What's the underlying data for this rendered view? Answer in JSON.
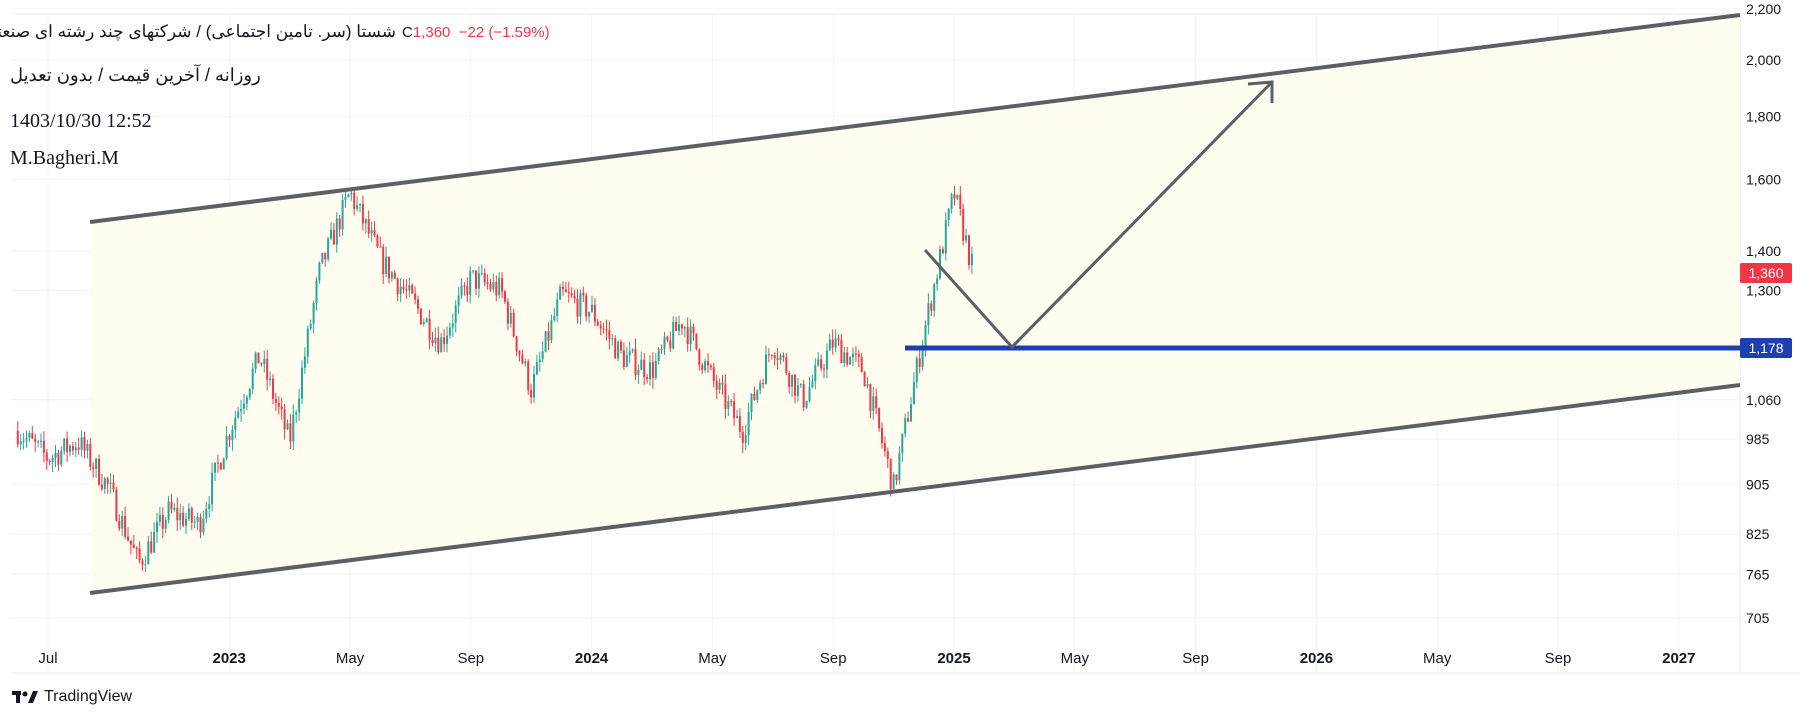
{
  "legend": {
    "symbol_line": "شستا (سر. تامین اجتماعی) / شرکتهای چند رشته ای صنعتی",
    "ohlc_c_label": "C",
    "ohlc_c_value": "1,360",
    "ohlc_change": "−22 (−1.59%)",
    "settings_line": "روزانه / آخرین قیمت / بدون تعدیل",
    "datetime": "1403/10/30 12:52",
    "author": "M.Bagheri.M"
  },
  "branding": {
    "logo_icon": "tradingview-logo-icon",
    "name": "TradingView"
  },
  "colors": {
    "up": "#26a69a",
    "down": "#f23645",
    "channel_fill": "#fffdf0",
    "channel_line": "#5d5f66",
    "support_line": "#1e3fb0",
    "last_price_badge": "#f23645",
    "support_badge": "#1e3fb0"
  },
  "chart_data": {
    "type": "candlestick",
    "scale": "log",
    "price_axis_labels": [
      "2,200",
      "2,000",
      "1,800",
      "1,600",
      "1,400",
      "1,300",
      "1,060",
      "985",
      "905",
      "825",
      "765",
      "705"
    ],
    "time_axis_labels": [
      "Jul",
      "2023",
      "May",
      "Sep",
      "2024",
      "May",
      "Sep",
      "2025",
      "May",
      "Sep",
      "2026",
      "May",
      "Sep",
      "2027"
    ],
    "last_price": "1,360",
    "support_level": "1,178",
    "approx_close_path": [
      {
        "t": "2022-06",
        "p": 1000
      },
      {
        "t": "2022-07",
        "p": 950
      },
      {
        "t": "2022-08",
        "p": 980
      },
      {
        "t": "2022-09",
        "p": 900
      },
      {
        "t": "2022-10",
        "p": 780
      },
      {
        "t": "2022-11",
        "p": 860
      },
      {
        "t": "2022-12",
        "p": 840
      },
      {
        "t": "2023-01",
        "p": 1000
      },
      {
        "t": "2023-02",
        "p": 1150
      },
      {
        "t": "2023-03",
        "p": 980
      },
      {
        "t": "2023-04",
        "p": 1350
      },
      {
        "t": "2023-05",
        "p": 1560
      },
      {
        "t": "2023-06",
        "p": 1380
      },
      {
        "t": "2023-07",
        "p": 1280
      },
      {
        "t": "2023-08",
        "p": 1180
      },
      {
        "t": "2023-09",
        "p": 1330
      },
      {
        "t": "2023-10",
        "p": 1300
      },
      {
        "t": "2023-11",
        "p": 1080
      },
      {
        "t": "2023-12",
        "p": 1290
      },
      {
        "t": "2024-01",
        "p": 1250
      },
      {
        "t": "2024-02",
        "p": 1150
      },
      {
        "t": "2024-03",
        "p": 1120
      },
      {
        "t": "2024-04",
        "p": 1230
      },
      {
        "t": "2024-05",
        "p": 1100
      },
      {
        "t": "2024-06",
        "p": 1000
      },
      {
        "t": "2024-07",
        "p": 1180
      },
      {
        "t": "2024-08",
        "p": 1060
      },
      {
        "t": "2024-09",
        "p": 1180
      },
      {
        "t": "2024-10",
        "p": 1120
      },
      {
        "t": "2024-11",
        "p": 900
      },
      {
        "t": "2024-12",
        "p": 1200
      },
      {
        "t": "2025-01",
        "p": 1560
      },
      {
        "t": "2025-01-19",
        "p": 1360
      }
    ]
  }
}
